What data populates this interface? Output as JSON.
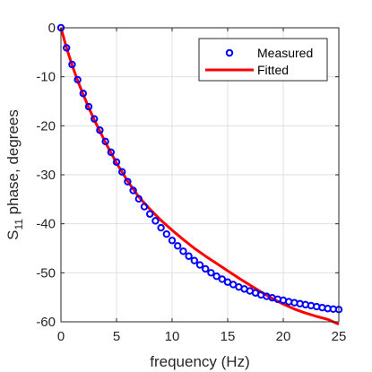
{
  "chart_data": {
    "type": "scatter",
    "xlabel": "frequency (Hz)",
    "ylabel_parts": {
      "base": "S",
      "subscript": "11",
      "rest": " phase, degrees"
    },
    "xlim": [
      0,
      25
    ],
    "ylim": [
      -60,
      0
    ],
    "xticks": [
      0,
      5,
      10,
      15,
      20,
      25
    ],
    "yticks": [
      0,
      -10,
      -20,
      -30,
      -40,
      -50,
      -60
    ],
    "grid": true,
    "legend_position": "top-right",
    "series": [
      {
        "name": "Measured",
        "kind": "markers",
        "color": "#0000ff",
        "x": [
          0,
          0.5,
          1.0,
          1.5,
          2.0,
          2.5,
          3.0,
          3.5,
          4.0,
          4.5,
          5.0,
          5.5,
          6.0,
          6.5,
          7.0,
          7.5,
          8.0,
          8.5,
          9.0,
          9.5,
          10.0,
          10.5,
          11.0,
          11.5,
          12.0,
          12.5,
          13.0,
          13.5,
          14.0,
          14.5,
          15.0,
          15.5,
          16.0,
          16.5,
          17.0,
          17.5,
          18.0,
          18.5,
          19.0,
          19.5,
          20.0,
          20.5,
          21.0,
          21.5,
          22.0,
          22.5,
          23.0,
          23.5,
          24.0,
          24.5,
          25.0
        ],
        "y": [
          0,
          -4.1,
          -7.5,
          -10.6,
          -13.4,
          -16.1,
          -18.6,
          -20.9,
          -23.2,
          -25.4,
          -27.4,
          -29.4,
          -31.4,
          -33.2,
          -34.9,
          -36.5,
          -38.0,
          -39.4,
          -40.8,
          -42.1,
          -43.4,
          -44.5,
          -45.6,
          -46.6,
          -47.5,
          -48.4,
          -49.2,
          -50.0,
          -50.7,
          -51.3,
          -51.9,
          -52.4,
          -52.9,
          -53.3,
          -53.7,
          -54.1,
          -54.5,
          -54.8,
          -55.1,
          -55.4,
          -55.6,
          -55.9,
          -56.1,
          -56.3,
          -56.5,
          -56.7,
          -56.9,
          -57.1,
          -57.3,
          -57.4,
          -57.5
        ]
      },
      {
        "name": "Fitted",
        "kind": "line",
        "color": "#ff0000",
        "x": [
          0,
          0.5,
          1.0,
          1.5,
          2.0,
          2.5,
          3.0,
          3.5,
          4.0,
          5.0,
          6.0,
          7.0,
          8.0,
          9.0,
          10.0,
          11.0,
          12.0,
          13.0,
          14.0,
          15.0,
          16.0,
          17.0,
          18.0,
          19.0,
          20.0,
          21.0,
          22.0,
          23.0,
          24.0,
          25.0
        ],
        "y": [
          0,
          -4.1,
          -7.6,
          -10.8,
          -13.6,
          -16.3,
          -18.8,
          -21.1,
          -23.4,
          -27.6,
          -31.3,
          -34.5,
          -37.0,
          -39.3,
          -41.3,
          -43.2,
          -45.0,
          -46.6,
          -48.1,
          -49.6,
          -51.1,
          -52.5,
          -53.9,
          -55.2,
          -56.4,
          -57.4,
          -58.2,
          -58.9,
          -59.5,
          -60.5
        ]
      }
    ]
  }
}
